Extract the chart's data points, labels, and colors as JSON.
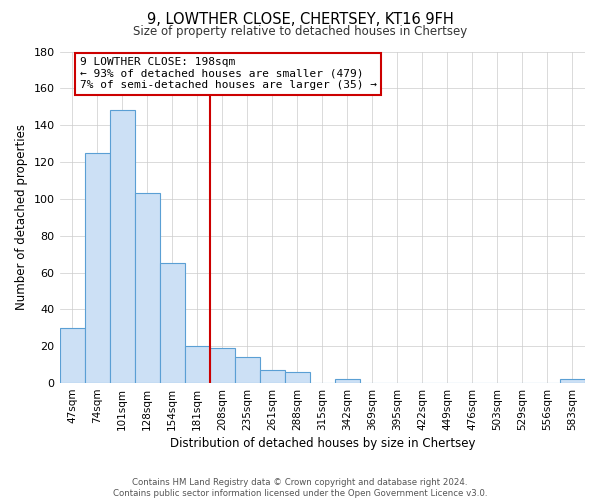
{
  "title": "9, LOWTHER CLOSE, CHERTSEY, KT16 9FH",
  "subtitle": "Size of property relative to detached houses in Chertsey",
  "xlabel": "Distribution of detached houses by size in Chertsey",
  "ylabel": "Number of detached properties",
  "bar_labels": [
    "47sqm",
    "74sqm",
    "101sqm",
    "128sqm",
    "154sqm",
    "181sqm",
    "208sqm",
    "235sqm",
    "261sqm",
    "288sqm",
    "315sqm",
    "342sqm",
    "369sqm",
    "395sqm",
    "422sqm",
    "449sqm",
    "476sqm",
    "503sqm",
    "529sqm",
    "556sqm",
    "583sqm"
  ],
  "bar_values": [
    30,
    125,
    148,
    103,
    65,
    20,
    19,
    14,
    7,
    6,
    0,
    2,
    0,
    0,
    0,
    0,
    0,
    0,
    0,
    0,
    2
  ],
  "bar_color": "#cce0f5",
  "bar_edge_color": "#5a9fd4",
  "vline_x_index": 6,
  "vline_color": "#cc0000",
  "annotation_text": "9 LOWTHER CLOSE: 198sqm\n← 93% of detached houses are smaller (479)\n7% of semi-detached houses are larger (35) →",
  "annotation_box_edgecolor": "#cc0000",
  "ylim": [
    0,
    180
  ],
  "yticks": [
    0,
    20,
    40,
    60,
    80,
    100,
    120,
    140,
    160,
    180
  ],
  "footer_line1": "Contains HM Land Registry data © Crown copyright and database right 2024.",
  "footer_line2": "Contains public sector information licensed under the Open Government Licence v3.0.",
  "background_color": "#ffffff",
  "grid_color": "#cccccc"
}
